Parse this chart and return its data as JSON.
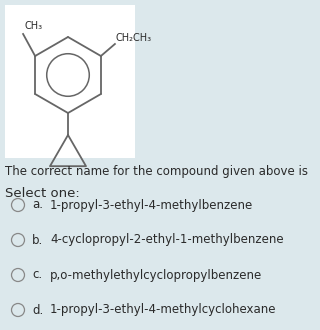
{
  "bg_color": "#dce8ec",
  "molecule_box_color": "#ffffff",
  "question_text": "The correct name for the compound given above is",
  "select_text": "Select one:",
  "options": [
    {
      "label": "a.",
      "text": "1-propyl-3-ethyl-4-methylbenzene"
    },
    {
      "label": "b.",
      "text": "4-cyclopropyl-2-ethyl-1-methylbenzene"
    },
    {
      "label": "c.",
      "text": "p,o-methylethylcyclopropylbenzene"
    },
    {
      "label": "d.",
      "text": "1-propyl-3-ethyl-4-methylcyclohexane"
    }
  ],
  "ch3_label": "CH₃",
  "ch2ch3_label": "CH₂CH₃",
  "text_color": "#2a2a2a",
  "line_color": "#666666",
  "font_size_question": 8.5,
  "font_size_select": 9.5,
  "font_size_options": 8.5,
  "font_size_mol_label": 7.0
}
